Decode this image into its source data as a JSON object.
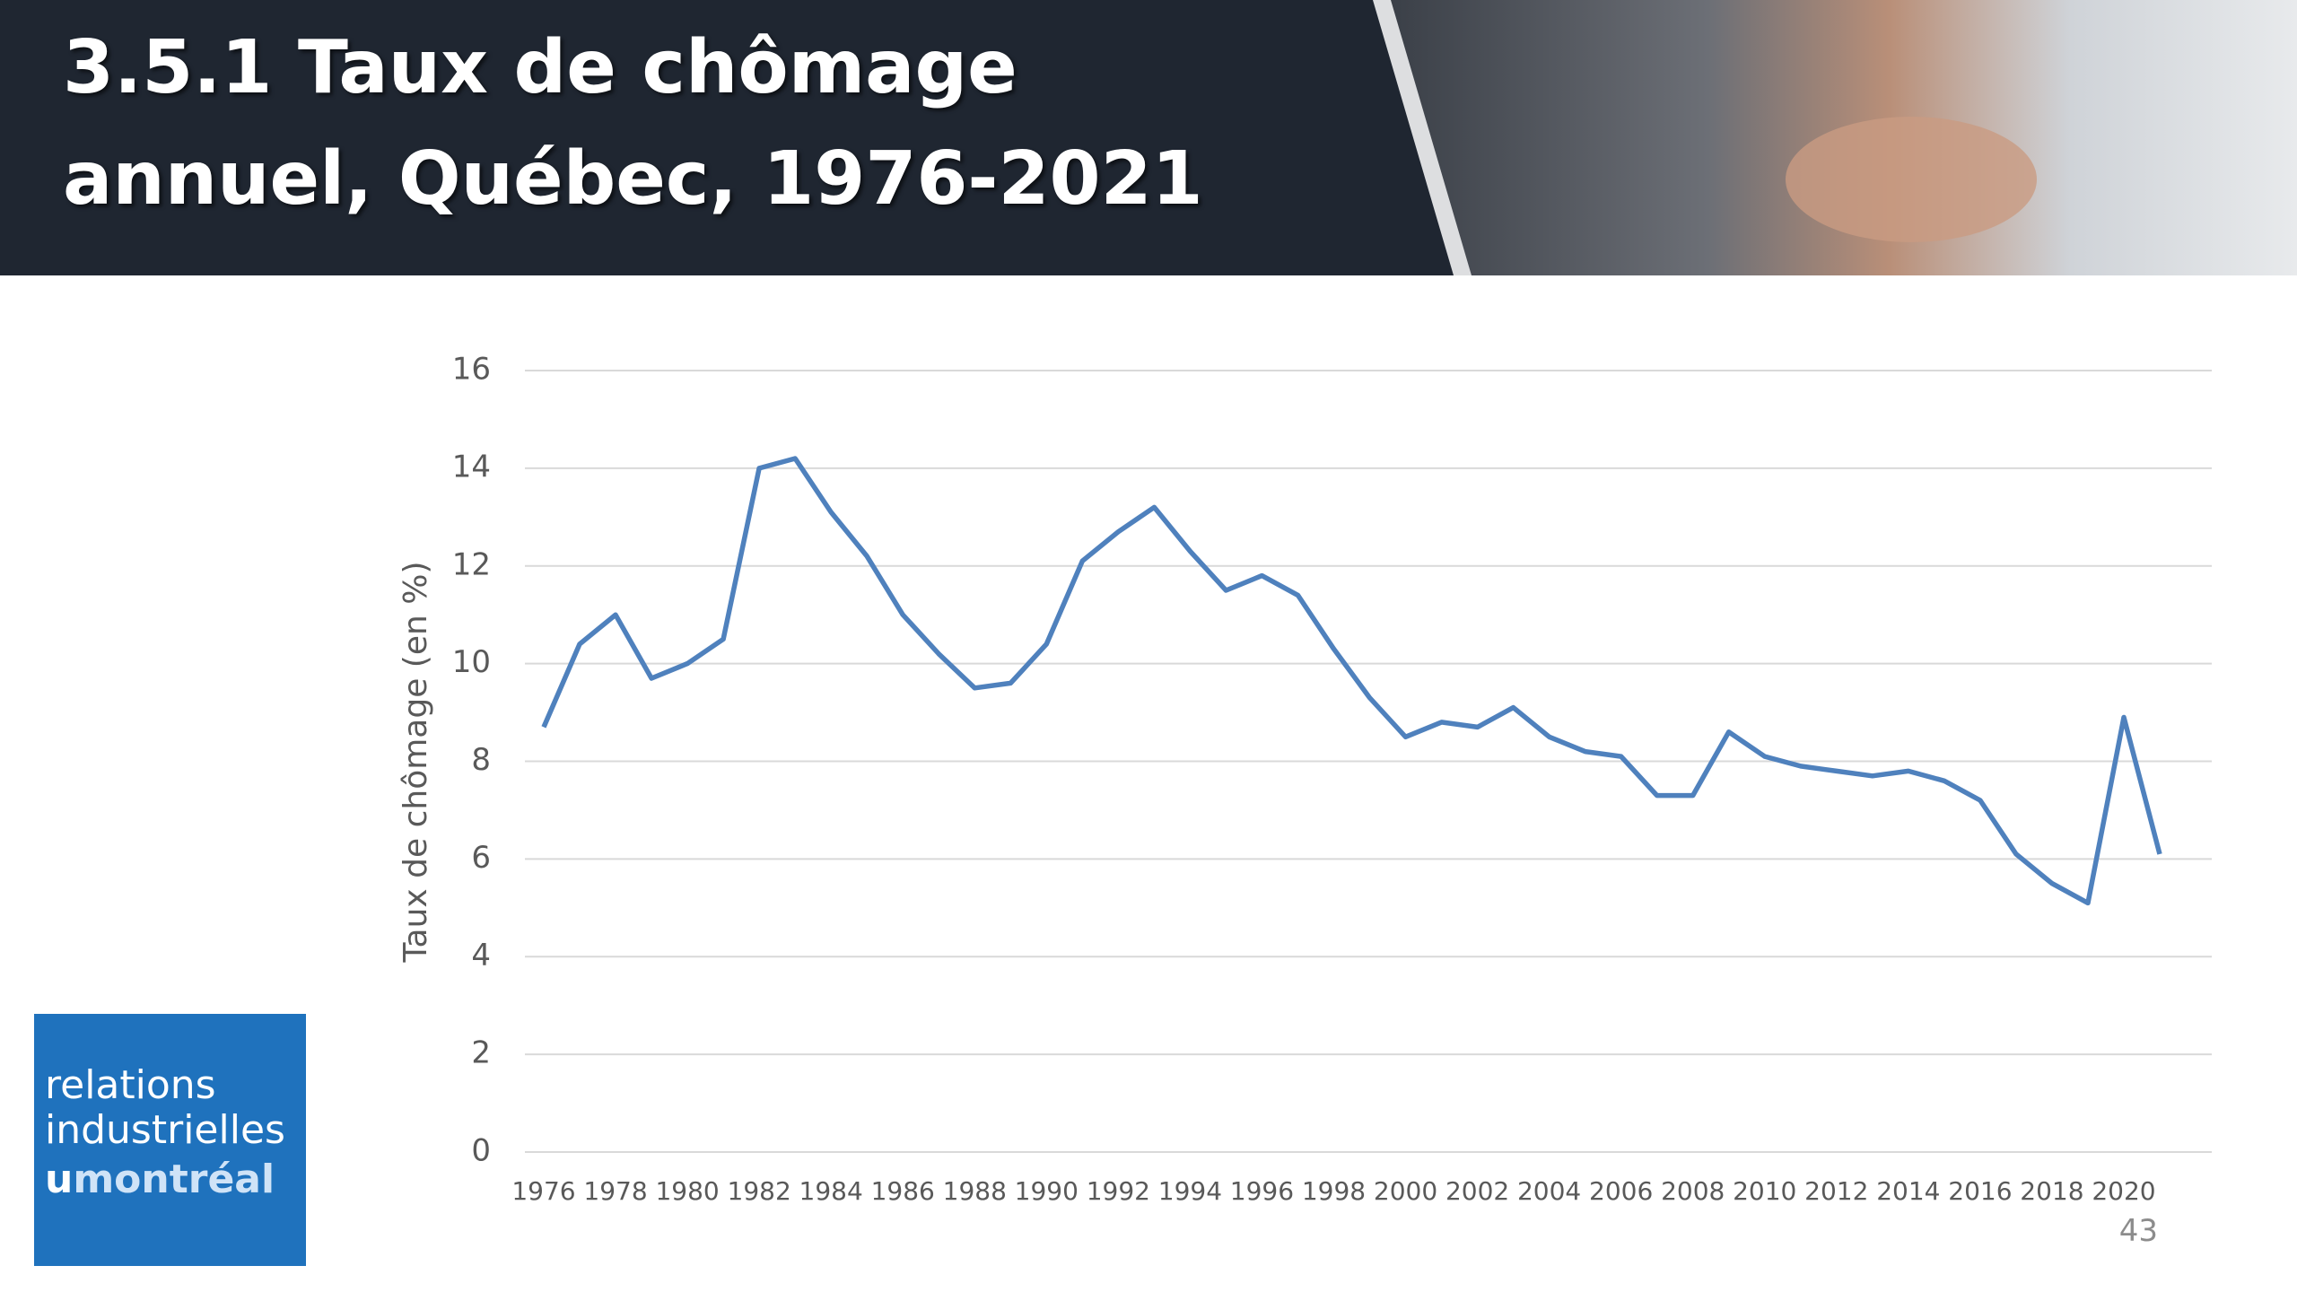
{
  "chart_data": {
    "type": "line",
    "title": "3.5.1 Taux de chômage annuel, Québec, 1976-2021",
    "ylabel": "Taux de chômage (en %)",
    "categories": [
      "1976",
      null,
      "1978",
      null,
      "1980",
      null,
      "1982",
      null,
      "1984",
      null,
      "1986",
      null,
      "1988",
      null,
      "1990",
      null,
      "1992",
      null,
      "1994",
      null,
      "1996",
      null,
      "1998",
      null,
      "2000",
      null,
      "2002",
      null,
      "2004",
      null,
      "2006",
      null,
      "2008",
      null,
      "2010",
      null,
      "2012",
      null,
      "2014",
      null,
      "2016",
      null,
      "2018",
      null,
      "2020",
      null
    ],
    "values": [
      8.7,
      10.4,
      11.0,
      9.7,
      10.0,
      10.5,
      14.0,
      14.2,
      13.1,
      12.2,
      11.0,
      10.2,
      9.5,
      9.6,
      10.4,
      12.1,
      12.7,
      13.2,
      12.3,
      11.5,
      11.8,
      11.4,
      10.3,
      9.3,
      8.5,
      8.8,
      8.7,
      9.1,
      8.5,
      8.2,
      8.1,
      7.3,
      7.3,
      8.6,
      8.1,
      7.9,
      7.8,
      7.7,
      7.8,
      7.6,
      7.2,
      6.1,
      5.5,
      5.1,
      8.9,
      6.1
    ],
    "color": "#4f81bd",
    "ylim": [
      0,
      16
    ],
    "yticks": [
      0,
      2,
      4,
      6,
      8,
      10,
      12,
      14,
      16
    ],
    "grid": true
  },
  "logo": {
    "line1": "relations",
    "line2": "industrielles",
    "brand_prefix": "u",
    "brand": "montréal"
  },
  "page_number": "43"
}
